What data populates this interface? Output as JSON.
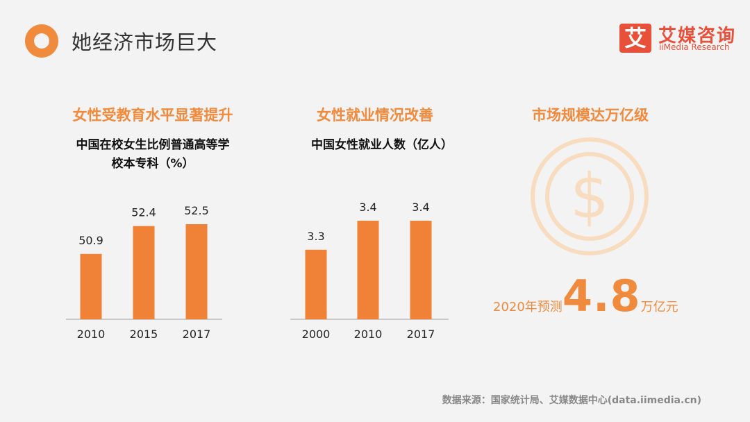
{
  "header": {
    "title": "她经济市场巨大",
    "logo_mark": "艾",
    "logo_cn": "艾媒咨询",
    "logo_en": "iiMedia Research",
    "accent": "#f08a3c",
    "logo_color": "#e8503a"
  },
  "sections": {
    "education": "女性受教育水平显著提升",
    "employment": "女性就业情况改善",
    "market": "市场规模达万亿级"
  },
  "chart_titles": {
    "education_line1": "中国在校女生比例普通高等学",
    "education_line2": "校本专科（%）",
    "employment": "中国女性就业人数（亿人）"
  },
  "chart_data": [
    {
      "type": "bar",
      "title": "中国在校女生比例普通高等学校本专科（%）",
      "categories": [
        "2010",
        "2015",
        "2017"
      ],
      "values": [
        50.9,
        52.4,
        52.5
      ],
      "value_labels": [
        "50.9",
        "52.4",
        "52.5"
      ],
      "color": "#ef8236"
    },
    {
      "type": "bar",
      "title": "中国女性就业人数（亿人）",
      "categories": [
        "2000",
        "2010",
        "2017"
      ],
      "values": [
        3.3,
        3.4,
        3.4
      ],
      "value_labels": [
        "3.3",
        "3.4",
        "3.4"
      ],
      "color": "#ef8236"
    }
  ],
  "market": {
    "icon": "dollar-coin-icon",
    "prefix": "2020年预测",
    "value": "4.8",
    "suffix": "万亿元"
  },
  "footer": {
    "source": "数据来源：国家统计局、艾媒数据中心(data.iimedia.cn)"
  }
}
